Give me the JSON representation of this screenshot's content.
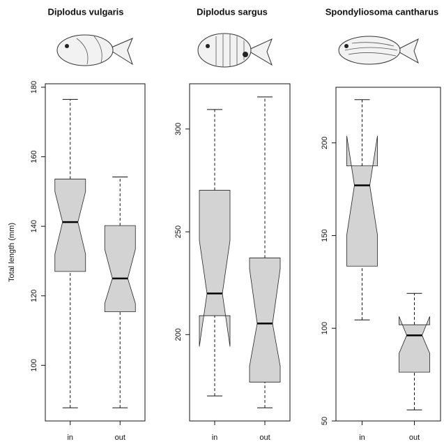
{
  "chart_data": [
    {
      "type": "box",
      "title": "Diplodus vulgaris",
      "ylabel": "Total length (mm)",
      "categories": [
        "in",
        "out"
      ],
      "color": "#d3d3d3",
      "boxes": [
        {
          "whisker_low": 87.8,
          "q1": 127,
          "notch_low": 132,
          "median": 141.2,
          "notch_high": 150,
          "q3": 153.6,
          "whisker_high": 176.5
        },
        {
          "whisker_low": 87.8,
          "q1": 115.4,
          "notch_low": 117.8,
          "median": 125,
          "notch_high": 133.4,
          "q3": 140.2,
          "whisker_high": 154.2
        }
      ],
      "ylim": [
        84,
        181
      ],
      "yticks": [
        100,
        120,
        140,
        160,
        180
      ]
    },
    {
      "type": "box",
      "title": "Diplodus sargus",
      "categories": [
        "in",
        "out"
      ],
      "color": "#d3d3d3",
      "boxes": [
        {
          "whisker_low": 170.2,
          "q1": 209.2,
          "notch_low": 194.2,
          "median": 220,
          "notch_high": 245.8,
          "q3": 270.2,
          "whisker_high": 309.5
        },
        {
          "whisker_low": 164.4,
          "q1": 176.9,
          "notch_low": 184.7,
          "median": 205.4,
          "notch_high": 232,
          "q3": 237.3,
          "whisker_high": 315.6
        }
      ],
      "ylim": [
        158,
        322
      ],
      "yticks": [
        200,
        250,
        300
      ]
    },
    {
      "type": "box",
      "title": "Spondyliosoma cantharus",
      "categories": [
        "in",
        "out"
      ],
      "color": "#d3d3d3",
      "boxes": [
        {
          "whisker_low": 104.5,
          "q1": 133.5,
          "notch_low": 150.4,
          "median": 177.1,
          "notch_high": 203.8,
          "q3": 187.6,
          "whisker_high": 223.3
        },
        {
          "whisker_low": 56,
          "q1": 76.3,
          "notch_low": 86.5,
          "median": 96.2,
          "notch_high": 106.4,
          "q3": 101.9,
          "whisker_high": 118.8
        }
      ],
      "ylim": [
        50,
        230
      ],
      "yticks": [
        50,
        100,
        150,
        200
      ]
    }
  ]
}
